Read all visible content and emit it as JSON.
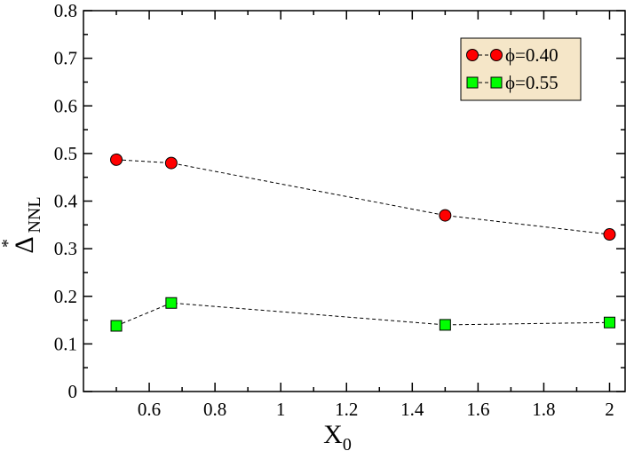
{
  "chart_data": {
    "type": "scatter",
    "title": "",
    "xlabel": "X",
    "xlabel_sub": "0",
    "ylabel": "Δ",
    "ylabel_sup": "*",
    "ylabel_sub": "NNL",
    "xlim": [
      0.4,
      2.05
    ],
    "ylim": [
      0,
      0.8
    ],
    "x_ticks": [
      0.6,
      0.8,
      1,
      1.2,
      1.4,
      1.6,
      1.8,
      2
    ],
    "x_tick_labels": [
      "0.6",
      "0.8",
      "1",
      "1.2",
      "1.4",
      "1.6",
      "1.8",
      "2"
    ],
    "y_ticks": [
      0,
      0.1,
      0.2,
      0.3,
      0.4,
      0.5,
      0.6,
      0.7,
      0.8
    ],
    "y_tick_labels": [
      "0",
      "0.1",
      "0.2",
      "0.3",
      "0.4",
      "0.5",
      "0.6",
      "0.7",
      "0.8"
    ],
    "grid": false,
    "legend_position": "top-right",
    "series": [
      {
        "name": "ϕ=0.40",
        "marker": "circle",
        "color": "#ff0000",
        "line_style": "dashed",
        "x": [
          0.5,
          0.667,
          1.5,
          2.0
        ],
        "y": [
          0.487,
          0.48,
          0.37,
          0.33
        ]
      },
      {
        "name": "ϕ=0.55",
        "marker": "square",
        "color": "#00ff00",
        "line_style": "dashed",
        "x": [
          0.5,
          0.667,
          1.5,
          2.0
        ],
        "y": [
          0.138,
          0.186,
          0.14,
          0.145
        ]
      }
    ],
    "legend_background": "#f5e6c8"
  }
}
